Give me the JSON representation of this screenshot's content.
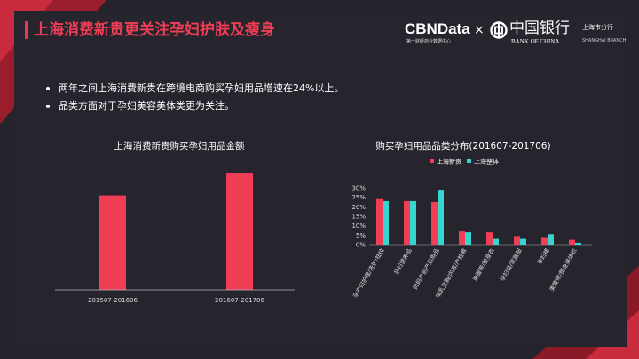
{
  "page": {
    "title": "上海消费新贵更关注孕妇护肤及瘦身",
    "bullets": [
      "两年之间上海消费新贵在跨境电商购买孕妇用品增速在24%以上。",
      "品类方面对于孕妇美容美体类更为关注。"
    ]
  },
  "brand": {
    "cbn_name": "CBNData",
    "cbn_tagline": "第一财经商业数据中心",
    "times": "×",
    "boc_name_cn": "中国银行",
    "boc_name_en": "BANK OF CHINA",
    "boc_branch_cn": "上海市分行",
    "boc_branch_en": "SHANGHAI BRANCH"
  },
  "colors": {
    "accent": "#ef3e55",
    "teal": "#36d6d0",
    "background": "#25232b"
  },
  "chart_data": [
    {
      "type": "bar",
      "title": "上海消费新贵购买孕妇用品金额",
      "categories": [
        "201507-201606",
        "201607-201706"
      ],
      "values": [
        100,
        124
      ],
      "ylim": [
        0,
        140
      ],
      "grid": false
    },
    {
      "type": "bar",
      "title": "购买孕妇用品品类分布(201607-201706)",
      "categories": [
        "孕产妇护理/洗护/祛纹",
        "孕妇营养品",
        "妈妈产前产后用品",
        "哺乳文胸/内裤/产检裤",
        "束腹带/塑身衣",
        "孕妇装/家居服",
        "孕妇裙",
        "束腹带/塑身美体衣"
      ],
      "series": [
        {
          "name": "上海新贵",
          "values": [
            24.5,
            23,
            22.5,
            7,
            6.5,
            4.5,
            4,
            2.5
          ]
        },
        {
          "name": "上海整体",
          "values": [
            23,
            23,
            29,
            6.5,
            3,
            3,
            5.5,
            1
          ]
        }
      ],
      "y_ticks": [
        "0%",
        "5%",
        "10%",
        "15%",
        "20%",
        "25%",
        "30%"
      ],
      "ylim": [
        0,
        30
      ],
      "legend": "top-center",
      "grid": false
    }
  ]
}
